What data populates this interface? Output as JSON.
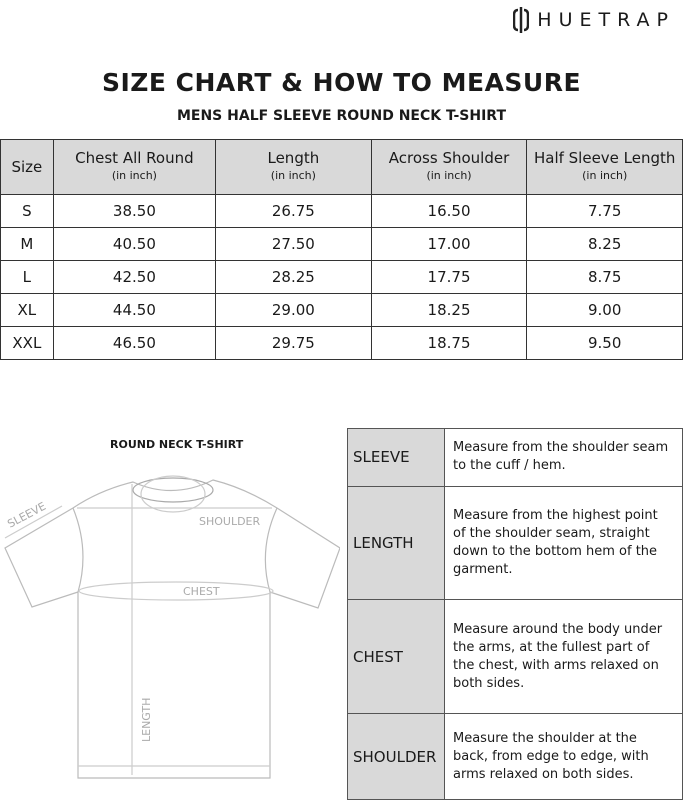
{
  "brand": {
    "name": "HUETRAP"
  },
  "title": "SIZE CHART & HOW TO MEASURE",
  "subtitle": "MENS HALF SLEEVE ROUND NECK T-SHIRT",
  "size_table": {
    "headers": [
      {
        "label": "Size",
        "unit": ""
      },
      {
        "label": "Chest All Round",
        "unit": "(in inch)"
      },
      {
        "label": "Length",
        "unit": "(in inch)"
      },
      {
        "label": "Across Shoulder",
        "unit": "(in inch)"
      },
      {
        "label": "Half Sleeve Length",
        "unit": "(in inch)"
      }
    ],
    "rows": [
      [
        "S",
        "38.50",
        "26.75",
        "16.50",
        "7.75"
      ],
      [
        "M",
        "40.50",
        "27.50",
        "17.00",
        "8.25"
      ],
      [
        "L",
        "42.50",
        "28.25",
        "17.75",
        "8.75"
      ],
      [
        "XL",
        "44.50",
        "29.00",
        "18.25",
        "9.00"
      ],
      [
        "XXL",
        "46.50",
        "29.75",
        "18.75",
        "9.50"
      ]
    ]
  },
  "diagram": {
    "title": "ROUND NECK T-SHIRT",
    "labels": {
      "sleeve": "SLEEVE",
      "shoulder": "SHOULDER",
      "chest": "CHEST",
      "length": "LENGTH"
    }
  },
  "measure": [
    {
      "label": "SLEEVE",
      "text": "Measure from the shoulder seam to the cuff / hem."
    },
    {
      "label": "LENGTH",
      "text": "Measure from the highest point of the shoulder seam, straight down to the bottom hem of the garment."
    },
    {
      "label": "CHEST",
      "text": "Measure around the body under the arms, at the fullest part of the chest, with arms relaxed on both sides."
    },
    {
      "label": "SHOULDER",
      "text": "Measure the shoulder at the back, from edge to edge, with arms relaxed on both sides."
    }
  ]
}
